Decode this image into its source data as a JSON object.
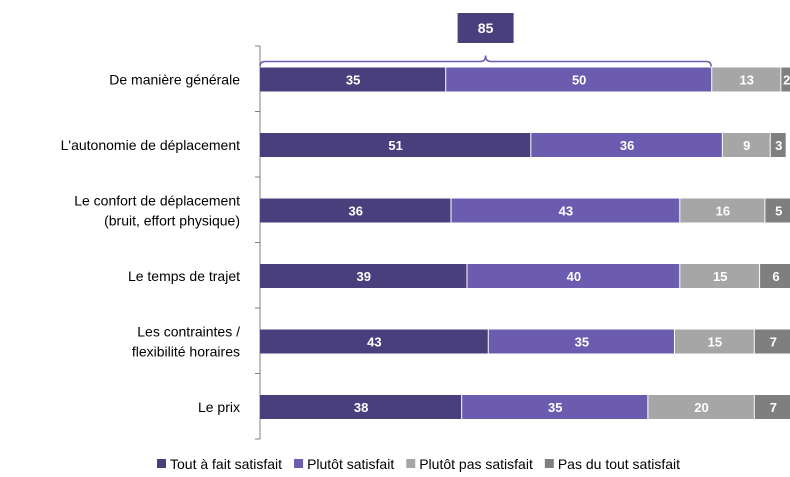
{
  "chart_data": {
    "type": "bar",
    "orientation": "horizontal",
    "stacked": true,
    "categories": [
      [
        "De manière générale"
      ],
      [
        "L'autonomie de déplacement"
      ],
      [
        "Le confort de déplacement",
        "(bruit, effort physique)"
      ],
      [
        "Le temps de trajet"
      ],
      [
        "Les contraintes /",
        "flexibilité horaires"
      ],
      [
        "Le prix"
      ]
    ],
    "series": [
      {
        "name": "Tout à fait satisfait",
        "color": "#4a3f7d",
        "values": [
          35,
          51,
          36,
          39,
          43,
          38
        ]
      },
      {
        "name": "Plutôt satisfait",
        "color": "#6b5cb0",
        "values": [
          50,
          36,
          43,
          40,
          35,
          35
        ]
      },
      {
        "name": "Plutôt pas satisfait",
        "color": "#a6a6a6",
        "values": [
          13,
          9,
          16,
          15,
          15,
          20
        ]
      },
      {
        "name": "Pas du tout satisfait",
        "color": "#7f7f7f",
        "values": [
          2,
          3,
          5,
          6,
          7,
          7
        ]
      }
    ],
    "callout": {
      "value": "85",
      "category_index": 0,
      "series_span": [
        0,
        1
      ]
    },
    "xlim": [
      0,
      100
    ],
    "grid": false,
    "legend_position": "bottom",
    "title": "",
    "xlabel": "",
    "ylabel": ""
  }
}
